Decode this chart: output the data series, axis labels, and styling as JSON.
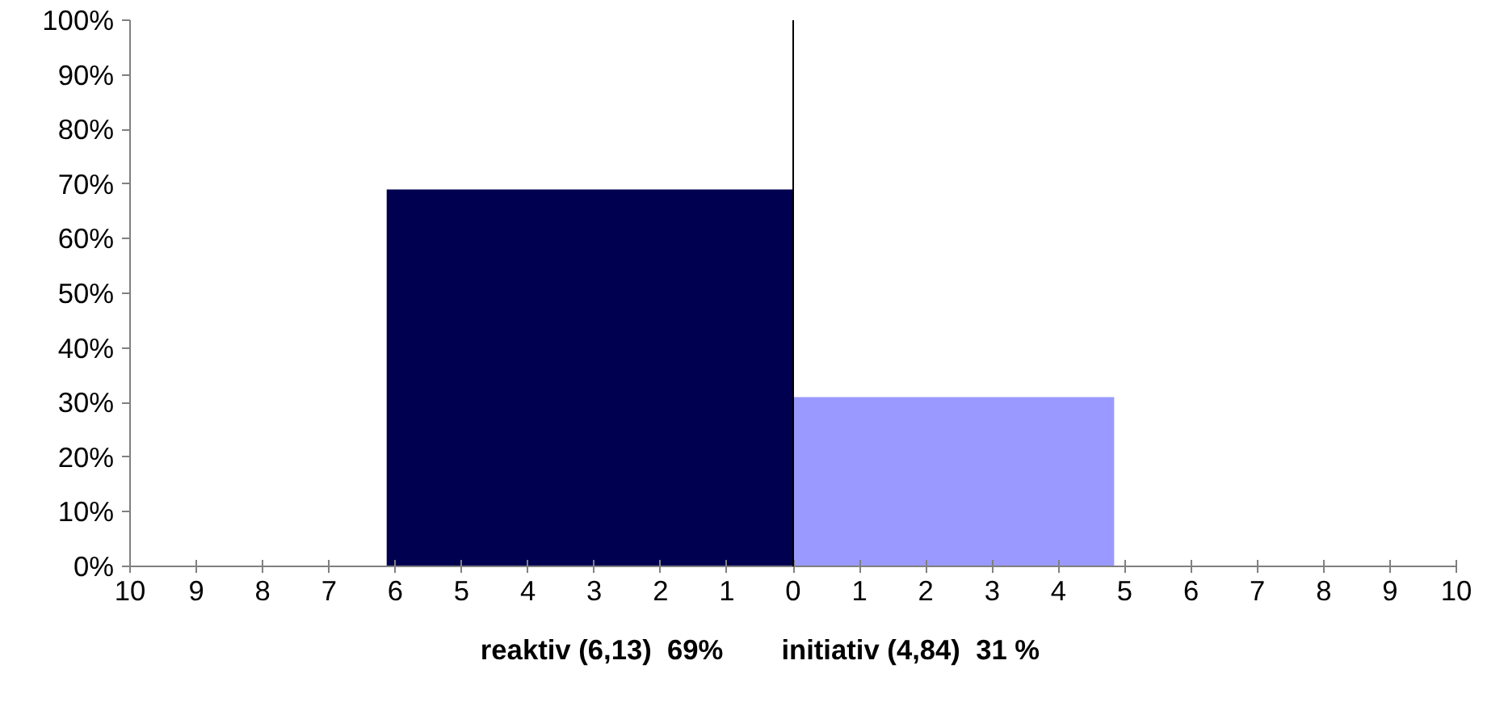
{
  "chart_data": {
    "type": "area",
    "series": [
      {
        "color": "#000050",
        "x": [
          -6.13,
          0
        ],
        "values": [
          69,
          69
        ]
      },
      {
        "color": "#9999ff",
        "x": [
          0,
          4.84
        ],
        "values": [
          31,
          31
        ]
      }
    ],
    "xlim": [
      -10,
      10
    ],
    "xticks": [
      {
        "value": -10,
        "label": "10"
      },
      {
        "value": -9,
        "label": "9"
      },
      {
        "value": -8,
        "label": "8"
      },
      {
        "value": -7,
        "label": "7"
      },
      {
        "value": -6,
        "label": "6"
      },
      {
        "value": -5,
        "label": "5"
      },
      {
        "value": -4,
        "label": "4"
      },
      {
        "value": -3,
        "label": "3"
      },
      {
        "value": -2,
        "label": "2"
      },
      {
        "value": -1,
        "label": "1"
      },
      0,
      1,
      2,
      3,
      4,
      5,
      6,
      7,
      8,
      9,
      10
    ],
    "ylim": [
      0,
      100
    ],
    "yticks": [
      {
        "value": 0,
        "label": "0%"
      },
      {
        "value": 10,
        "label": "10%"
      },
      {
        "value": 20,
        "label": "20%"
      },
      {
        "value": 30,
        "label": "30%"
      },
      {
        "value": 40,
        "label": "40%"
      },
      {
        "value": 50,
        "label": "50%"
      },
      {
        "value": 60,
        "label": "60%"
      },
      {
        "value": 70,
        "label": "70%"
      },
      {
        "value": 80,
        "label": "80%"
      },
      {
        "value": 90,
        "label": "90%"
      },
      {
        "value": 100,
        "label": "100%"
      }
    ],
    "ref_lines": [
      {
        "axis": "x",
        "value": 0,
        "color": "#000000"
      }
    ],
    "annotations": [
      "reaktiv (6,13)  69%",
      "initiativ (4,84)  31 %"
    ],
    "grid": false
  }
}
